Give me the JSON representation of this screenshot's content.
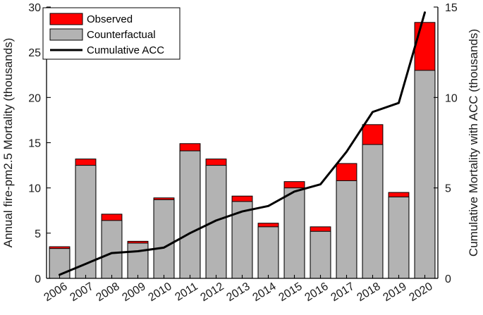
{
  "chart_data": {
    "type": "bar",
    "stacked": true,
    "categories": [
      "2006",
      "2007",
      "2008",
      "2009",
      "2010",
      "2011",
      "2012",
      "2013",
      "2014",
      "2015",
      "2016",
      "2017",
      "2018",
      "2019",
      "2020"
    ],
    "series": [
      {
        "name": "Counterfactual",
        "color": "#b3b3b3",
        "values": [
          3.3,
          12.5,
          6.4,
          3.9,
          8.7,
          14.1,
          12.5,
          8.5,
          5.7,
          10.0,
          5.2,
          10.8,
          14.8,
          9.0,
          23.0
        ]
      },
      {
        "name": "Observed",
        "color": "#ff0000",
        "values": [
          3.5,
          13.2,
          7.1,
          4.1,
          8.9,
          14.9,
          13.2,
          9.1,
          6.1,
          10.7,
          5.7,
          12.7,
          17.0,
          9.5,
          28.3
        ]
      },
      {
        "name": "Cumulative ACC",
        "type": "line",
        "axis": "right",
        "color": "#000000",
        "values": [
          0.2,
          0.8,
          1.4,
          1.5,
          1.7,
          2.5,
          3.2,
          3.7,
          4.0,
          4.8,
          5.2,
          7.0,
          9.2,
          9.7,
          14.7
        ]
      }
    ],
    "xlabel": "",
    "ylabel": "Annual fire-pm2.5 Mortality (thousands)",
    "y2label": "Cumulative Mortality with ACC (thousands)",
    "ylim": [
      0,
      30
    ],
    "y2lim": [
      0,
      15
    ],
    "yticks": [
      0,
      5,
      10,
      15,
      20,
      25,
      30
    ],
    "y2ticks": [
      0,
      5,
      10,
      15
    ],
    "legend": {
      "placement": "top-left",
      "entries": [
        {
          "label": "Observed",
          "color": "#ff0000",
          "kind": "box"
        },
        {
          "label": "Counterfactual",
          "color": "#b3b3b3",
          "kind": "box"
        },
        {
          "label": "Cumulative ACC",
          "color": "#000000",
          "kind": "line"
        }
      ]
    }
  }
}
